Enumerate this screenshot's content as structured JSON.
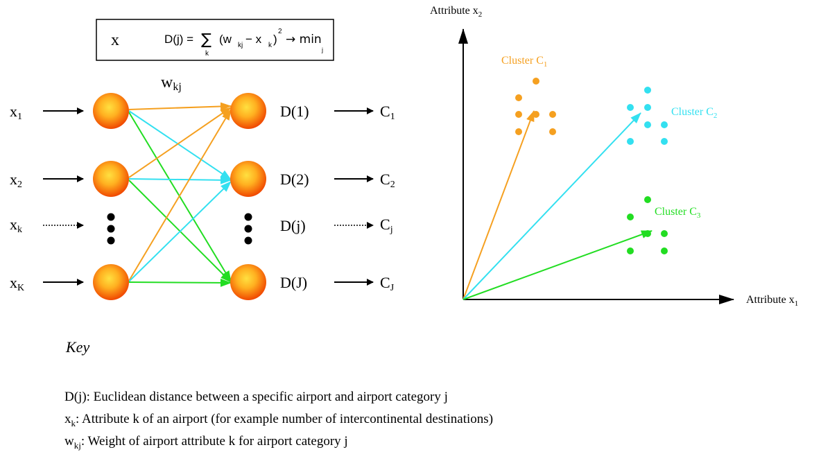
{
  "formula": {
    "input_label": "x",
    "lhs": "D(j) = ",
    "sum_symbol": "∑",
    "sum_index": "k",
    "body_open": "(w",
    "w_sub": "kj",
    "minus": " − x",
    "x_sub": "k",
    "body_close": ")",
    "power": "2",
    "arrow_min": "→ min",
    "min_sub": "j"
  },
  "network": {
    "weight_label": "w",
    "weight_sub": "kj",
    "dots_symbol": "●",
    "inputs": [
      {
        "base": "x",
        "sub": "1",
        "style": "solid"
      },
      {
        "base": "x",
        "sub": "2",
        "style": "solid"
      },
      {
        "base": "x",
        "sub": "k",
        "style": "dotted"
      },
      {
        "base": "x",
        "sub": "K",
        "style": "solid"
      }
    ],
    "distances": [
      "D(1)",
      "D(2)",
      "D(j)",
      "D(J)"
    ],
    "clusters": [
      {
        "base": "C",
        "sub": "1"
      },
      {
        "base": "C",
        "sub": "2"
      },
      {
        "base": "C",
        "sub": "j"
      },
      {
        "base": "C",
        "sub": "J"
      }
    ],
    "colors": {
      "orange": "#F5A020",
      "cyan": "#33E0F0",
      "green": "#22DD22",
      "node_inner": "#FFCC33",
      "node_outer": "#F05A00"
    }
  },
  "scatter": {
    "y_axis_label": "Attribute x",
    "y_axis_sub": "2",
    "x_axis_label": "Attribute x",
    "x_axis_sub": "1",
    "clusters": [
      {
        "label": "Cluster C",
        "sub": "1",
        "color": "#F5A020"
      },
      {
        "label": "Cluster C",
        "sub": "2",
        "color": "#33E0F0"
      },
      {
        "label": "Cluster C",
        "sub": "3",
        "color": "#22DD22"
      }
    ]
  },
  "key": {
    "title": "Key",
    "items": [
      {
        "sym": "D(j)",
        "sub": "",
        "text": ": Euclidean distance between a specific airport and airport category j"
      },
      {
        "sym": "x",
        "sub": "k",
        "text": ": Attribute k of an airport (for example number of intercontinental destinations)"
      },
      {
        "sym": "w",
        "sub": "kj",
        "text": ": Weight of airport attribute k for airport category j"
      }
    ]
  }
}
